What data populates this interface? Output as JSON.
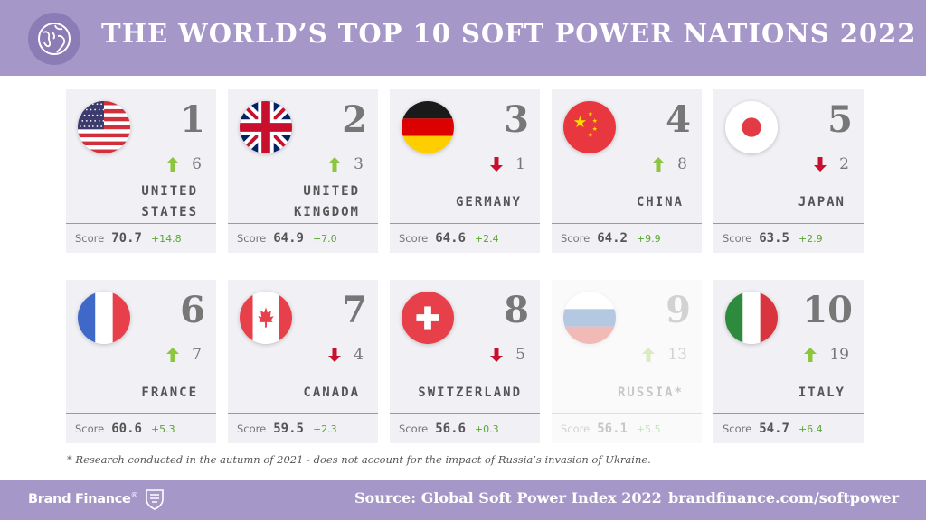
{
  "header": {
    "title": "THE WORLD’S TOP 10 SOFT POWER NATIONS 2022",
    "icon": "globe-icon"
  },
  "colors": {
    "banner": "#a597c8",
    "card": "#f1f0f4",
    "up": "#8cc63f",
    "down": "#c8102e",
    "score_change": "#58a632"
  },
  "nations": [
    {
      "rank": "1",
      "country": "UNITED STATES",
      "country_lines": [
        "UNITED",
        "STATES"
      ],
      "direction": "up",
      "previous_rank": "6",
      "score_label": "Score",
      "score": "70.7",
      "score_change": "+14.8",
      "flag": "us-flag-icon",
      "faded": false
    },
    {
      "rank": "2",
      "country": "UNITED KINGDOM",
      "country_lines": [
        "UNITED",
        "KINGDOM"
      ],
      "direction": "up",
      "previous_rank": "3",
      "score_label": "Score",
      "score": "64.9",
      "score_change": "+7.0",
      "flag": "uk-flag-icon",
      "faded": false
    },
    {
      "rank": "3",
      "country": "GERMANY",
      "country_lines": [
        "GERMANY"
      ],
      "direction": "down",
      "previous_rank": "1",
      "score_label": "Score",
      "score": "64.6",
      "score_change": "+2.4",
      "flag": "germany-flag-icon",
      "faded": false
    },
    {
      "rank": "4",
      "country": "CHINA",
      "country_lines": [
        "CHINA"
      ],
      "direction": "up",
      "previous_rank": "8",
      "score_label": "Score",
      "score": "64.2",
      "score_change": "+9.9",
      "flag": "china-flag-icon",
      "faded": false
    },
    {
      "rank": "5",
      "country": "JAPAN",
      "country_lines": [
        "JAPAN"
      ],
      "direction": "down",
      "previous_rank": "2",
      "score_label": "Score",
      "score": "63.5",
      "score_change": "+2.9",
      "flag": "japan-flag-icon",
      "faded": false
    },
    {
      "rank": "6",
      "country": "FRANCE",
      "country_lines": [
        "FRANCE"
      ],
      "direction": "up",
      "previous_rank": "7",
      "score_label": "Score",
      "score": "60.6",
      "score_change": "+5.3",
      "flag": "france-flag-icon",
      "faded": false
    },
    {
      "rank": "7",
      "country": "CANADA",
      "country_lines": [
        "CANADA"
      ],
      "direction": "down",
      "previous_rank": "4",
      "score_label": "Score",
      "score": "59.5",
      "score_change": "+2.3",
      "flag": "canada-flag-icon",
      "faded": false
    },
    {
      "rank": "8",
      "country": "SWITZERLAND",
      "country_lines": [
        "SWITZERLAND"
      ],
      "direction": "down",
      "previous_rank": "5",
      "score_label": "Score",
      "score": "56.6",
      "score_change": "+0.3",
      "flag": "switzerland-flag-icon",
      "faded": false
    },
    {
      "rank": "9",
      "country": "RUSSIA*",
      "country_lines": [
        "RUSSIA*"
      ],
      "direction": "up",
      "previous_rank": "13",
      "score_label": "Score",
      "score": "56.1",
      "score_change": "+5.5",
      "flag": "russia-flag-icon",
      "faded": true
    },
    {
      "rank": "10",
      "country": "ITALY",
      "country_lines": [
        "ITALY"
      ],
      "direction": "up",
      "previous_rank": "19",
      "score_label": "Score",
      "score": "54.7",
      "score_change": "+6.4",
      "flag": "italy-flag-icon",
      "faded": false
    }
  ],
  "footnote": "* Research conducted in the autumn of 2021 - does not account for the impact of Russia’s invasion of Ukraine.",
  "footer": {
    "brand": "Brand Finance",
    "brand_mark": "®",
    "source": "Source: Global Soft Power Index 2022",
    "url": "brandfinance.com/softpower"
  }
}
